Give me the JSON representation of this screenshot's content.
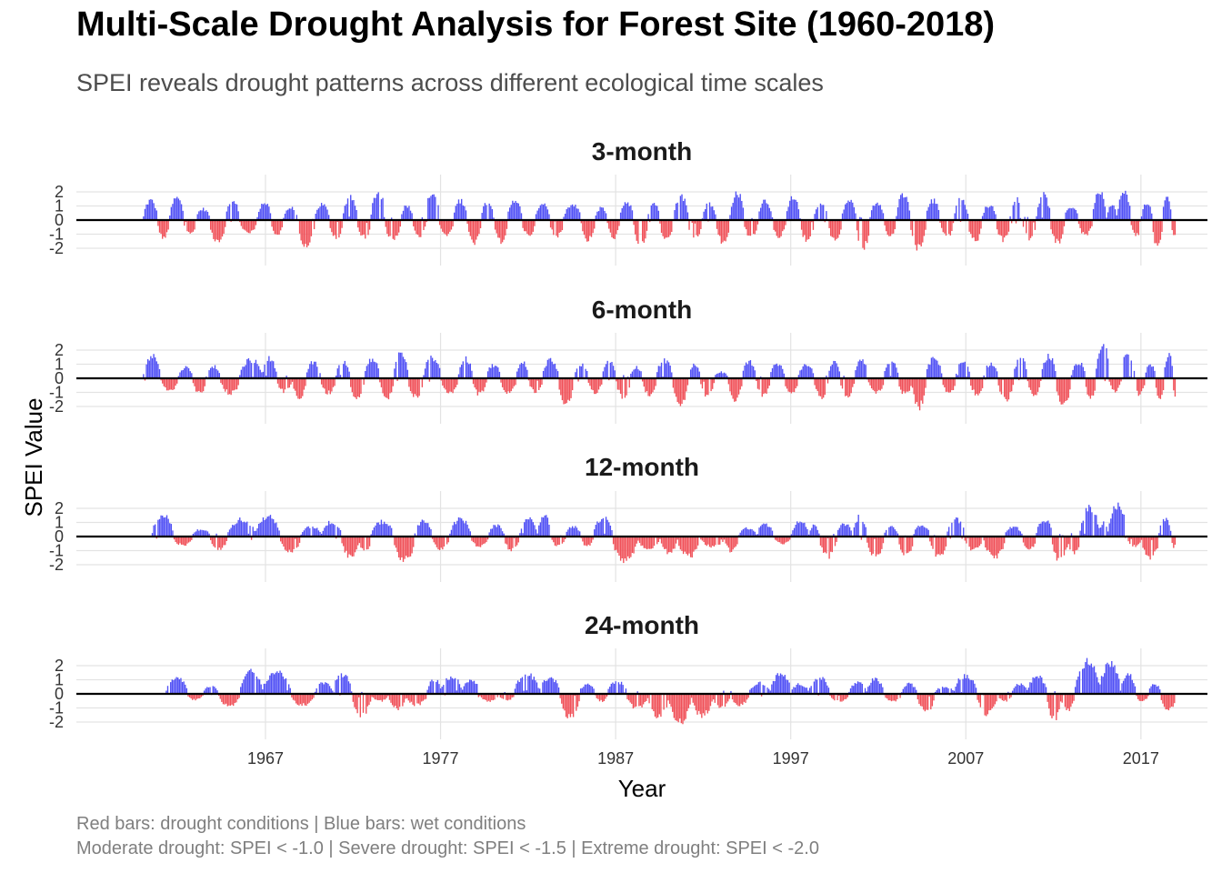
{
  "title": "Multi-Scale Drought Analysis for Forest Site (1960-2018)",
  "subtitle": "SPEI reveals drought patterns across different ecological time scales",
  "caption_line1": "Red bars: drought conditions | Blue bars: wet conditions",
  "caption_line2": "Moderate drought: SPEI < -1.0 | Severe drought: SPEI < -1.5 | Extreme drought: SPEI < -2.0",
  "colors": {
    "wet": "#5050f5",
    "dry": "#f05058",
    "grid": "#e3e3e3",
    "zero_line": "#000000"
  },
  "chart_data": {
    "type": "bar",
    "xlabel": "Year",
    "ylabel": "SPEI Value",
    "x_ticks": [
      1967,
      1977,
      1987,
      1997,
      2007,
      2017
    ],
    "y_ticks": [
      -2,
      -1,
      0,
      1,
      2
    ],
    "x_range": [
      1956.2,
      2020.8
    ],
    "ylim": [
      -3.3,
      3.3
    ],
    "grid": true,
    "panels": [
      {
        "name": "3-month",
        "start": 1960.0,
        "end": 2019.0,
        "episodes": [
          [
            1960.0,
            1.6
          ],
          [
            1960.8,
            -1.4
          ],
          [
            1961.5,
            1.8
          ],
          [
            1962.3,
            -1.2
          ],
          [
            1963.0,
            0.9
          ],
          [
            1963.8,
            -1.9
          ],
          [
            1964.7,
            1.5
          ],
          [
            1965.5,
            -1.0
          ],
          [
            1966.5,
            1.4
          ],
          [
            1967.3,
            -1.2
          ],
          [
            1968.0,
            1.0
          ],
          [
            1968.8,
            -2.0
          ],
          [
            1969.8,
            1.3
          ],
          [
            1970.6,
            -1.5
          ],
          [
            1971.4,
            1.9
          ],
          [
            1972.2,
            -1.4
          ],
          [
            1973.0,
            2.3
          ],
          [
            1973.8,
            -1.6
          ],
          [
            1974.7,
            1.2
          ],
          [
            1975.4,
            -1.5
          ],
          [
            1976.1,
            2.2
          ],
          [
            1976.9,
            -1.2
          ],
          [
            1977.7,
            1.6
          ],
          [
            1978.5,
            -1.8
          ],
          [
            1979.3,
            1.5
          ],
          [
            1980.0,
            -1.7
          ],
          [
            1980.8,
            1.7
          ],
          [
            1981.6,
            -1.2
          ],
          [
            1982.4,
            1.4
          ],
          [
            1983.2,
            -1.3
          ],
          [
            1984.0,
            1.2
          ],
          [
            1985.0,
            -1.6
          ],
          [
            1985.8,
            1.0
          ],
          [
            1986.5,
            -1.4
          ],
          [
            1987.2,
            1.5
          ],
          [
            1988.0,
            -2.0
          ],
          [
            1988.8,
            1.4
          ],
          [
            1989.5,
            -1.7
          ],
          [
            1990.3,
            2.0
          ],
          [
            1991.1,
            -1.5
          ],
          [
            1991.9,
            1.3
          ],
          [
            1992.7,
            -1.8
          ],
          [
            1993.5,
            2.2
          ],
          [
            1994.3,
            -1.4
          ],
          [
            1995.1,
            1.6
          ],
          [
            1995.9,
            -1.3
          ],
          [
            1996.7,
            1.8
          ],
          [
            1997.5,
            -1.6
          ],
          [
            1998.3,
            1.3
          ],
          [
            1999.1,
            -1.6
          ],
          [
            1999.9,
            1.6
          ],
          [
            2000.7,
            -2.2
          ],
          [
            2001.5,
            1.5
          ],
          [
            2002.3,
            -1.3
          ],
          [
            2003.0,
            2.0
          ],
          [
            2003.8,
            -2.3
          ],
          [
            2004.7,
            1.6
          ],
          [
            2005.5,
            -1.3
          ],
          [
            2006.3,
            1.7
          ],
          [
            2007.1,
            -1.7
          ],
          [
            2007.9,
            1.2
          ],
          [
            2008.7,
            -1.6
          ],
          [
            2009.5,
            1.8
          ],
          [
            2010.2,
            -1.5
          ],
          [
            2011.0,
            2.0
          ],
          [
            2011.8,
            -1.8
          ],
          [
            2012.6,
            1.1
          ],
          [
            2013.4,
            -1.2
          ],
          [
            2014.2,
            2.4
          ],
          [
            2015.0,
            1.2
          ],
          [
            2015.6,
            2.2
          ],
          [
            2016.4,
            -1.3
          ],
          [
            2017.0,
            1.5
          ],
          [
            2017.6,
            -2.0
          ],
          [
            2018.2,
            1.9
          ],
          [
            2018.7,
            -1.3
          ]
        ]
      },
      {
        "name": "6-month",
        "start": 1960.0,
        "end": 2019.0,
        "episodes": [
          [
            1960.0,
            1.8
          ],
          [
            1961.0,
            -1.0
          ],
          [
            1962.0,
            0.9
          ],
          [
            1962.8,
            -1.2
          ],
          [
            1963.6,
            1.0
          ],
          [
            1964.4,
            -1.2
          ],
          [
            1965.5,
            1.5
          ],
          [
            1966.8,
            1.6
          ],
          [
            1967.6,
            -1.1
          ],
          [
            1968.5,
            -1.5
          ],
          [
            1969.3,
            1.3
          ],
          [
            1970.1,
            -1.2
          ],
          [
            1971.0,
            1.4
          ],
          [
            1971.8,
            -1.7
          ],
          [
            1972.6,
            1.5
          ],
          [
            1973.5,
            -1.6
          ],
          [
            1974.3,
            2.1
          ],
          [
            1975.1,
            -1.5
          ],
          [
            1976.0,
            1.7
          ],
          [
            1977.0,
            -1.2
          ],
          [
            1978.0,
            1.6
          ],
          [
            1978.8,
            -1.3
          ],
          [
            1979.6,
            1.1
          ],
          [
            1980.4,
            -1.2
          ],
          [
            1981.3,
            1.3
          ],
          [
            1982.0,
            -1.1
          ],
          [
            1982.8,
            1.5
          ],
          [
            1983.7,
            -2.0
          ],
          [
            1984.6,
            1.1
          ],
          [
            1985.4,
            -1.2
          ],
          [
            1986.2,
            1.3
          ],
          [
            1987.0,
            -1.5
          ],
          [
            1987.8,
            0.9
          ],
          [
            1988.5,
            -1.3
          ],
          [
            1989.3,
            1.5
          ],
          [
            1990.2,
            -2.1
          ],
          [
            1991.1,
            1.1
          ],
          [
            1991.8,
            -1.5
          ],
          [
            1992.6,
            0.5
          ],
          [
            1993.4,
            -1.7
          ],
          [
            1994.2,
            1.4
          ],
          [
            1995.0,
            -1.4
          ],
          [
            1995.8,
            1.2
          ],
          [
            1996.6,
            -1.3
          ],
          [
            1997.4,
            1.1
          ],
          [
            1998.3,
            -1.5
          ],
          [
            1999.1,
            1.3
          ],
          [
            1999.8,
            -1.4
          ],
          [
            2000.6,
            1.4
          ],
          [
            2001.4,
            -1.2
          ],
          [
            2002.3,
            1.4
          ],
          [
            2003.1,
            -1.3
          ],
          [
            2003.9,
            -2.3
          ],
          [
            2004.7,
            1.6
          ],
          [
            2005.6,
            -1.2
          ],
          [
            2006.4,
            1.3
          ],
          [
            2007.2,
            -1.3
          ],
          [
            2008.0,
            1.2
          ],
          [
            2008.8,
            -1.7
          ],
          [
            2009.7,
            1.6
          ],
          [
            2010.5,
            -1.3
          ],
          [
            2011.3,
            1.8
          ],
          [
            2012.1,
            -2.0
          ],
          [
            2013.0,
            1.3
          ],
          [
            2013.8,
            -1.6
          ],
          [
            2014.4,
            2.6
          ],
          [
            2015.2,
            -1.2
          ],
          [
            2015.8,
            2.0
          ],
          [
            2016.6,
            -1.3
          ],
          [
            2017.2,
            1.1
          ],
          [
            2017.8,
            -1.8
          ],
          [
            2018.3,
            2.0
          ],
          [
            2018.8,
            -1.5
          ]
        ]
      },
      {
        "name": "12-month",
        "start": 1960.5,
        "end": 2019.0,
        "episodes": [
          [
            1960.5,
            1.8
          ],
          [
            1961.7,
            -0.7
          ],
          [
            1962.8,
            0.6
          ],
          [
            1963.8,
            -1.0
          ],
          [
            1964.8,
            1.4
          ],
          [
            1966.4,
            1.6
          ],
          [
            1967.8,
            -1.2
          ],
          [
            1969.0,
            0.8
          ],
          [
            1970.2,
            1.2
          ],
          [
            1971.3,
            -1.6
          ],
          [
            1972.3,
            -1.2
          ],
          [
            1973.0,
            1.2
          ],
          [
            1974.3,
            -1.9
          ],
          [
            1975.5,
            1.3
          ],
          [
            1976.5,
            -1.0
          ],
          [
            1977.5,
            1.4
          ],
          [
            1978.7,
            -0.8
          ],
          [
            1979.7,
            0.9
          ],
          [
            1980.6,
            -1.1
          ],
          [
            1981.5,
            1.4
          ],
          [
            1982.5,
            1.6
          ],
          [
            1983.3,
            -0.8
          ],
          [
            1984.1,
            0.8
          ],
          [
            1985.0,
            -0.8
          ],
          [
            1985.7,
            1.5
          ],
          [
            1986.8,
            -2.0
          ],
          [
            1988.2,
            -1.0
          ],
          [
            1989.5,
            -1.3
          ],
          [
            1990.5,
            -1.6
          ],
          [
            1991.8,
            -0.8
          ],
          [
            1993.2,
            -1.2
          ],
          [
            1994.0,
            0.7
          ],
          [
            1995.0,
            1.0
          ],
          [
            1996.0,
            -0.6
          ],
          [
            1997.0,
            1.2
          ],
          [
            1998.0,
            0.9
          ],
          [
            1998.6,
            -1.6
          ],
          [
            1999.6,
            1.0
          ],
          [
            2000.5,
            1.6
          ],
          [
            2001.3,
            -1.6
          ],
          [
            2002.3,
            0.8
          ],
          [
            2003.1,
            -1.5
          ],
          [
            2004.0,
            1.0
          ],
          [
            2004.9,
            -1.6
          ],
          [
            2005.9,
            1.4
          ],
          [
            2006.9,
            -1.1
          ],
          [
            2008.0,
            -1.7
          ],
          [
            2009.2,
            0.8
          ],
          [
            2010.2,
            -1.0
          ],
          [
            2011.0,
            1.4
          ],
          [
            2011.9,
            -2.0
          ],
          [
            2012.8,
            -1.4
          ],
          [
            2013.5,
            2.3
          ],
          [
            2014.6,
            1.2
          ],
          [
            2015.1,
            2.5
          ],
          [
            2016.2,
            -0.8
          ],
          [
            2017.0,
            -1.7
          ],
          [
            2018.0,
            1.4
          ],
          [
            2018.7,
            -0.9
          ]
        ]
      },
      {
        "name": "24-month",
        "start": 1961.3,
        "end": 2019.0,
        "episodes": [
          [
            1961.3,
            1.4
          ],
          [
            1962.5,
            -0.5
          ],
          [
            1963.4,
            0.6
          ],
          [
            1964.3,
            -1.0
          ],
          [
            1965.5,
            1.8
          ],
          [
            1966.8,
            1.8
          ],
          [
            1968.4,
            -0.9
          ],
          [
            1969.8,
            0.9
          ],
          [
            1970.8,
            1.6
          ],
          [
            1971.9,
            -1.7
          ],
          [
            1973.0,
            -0.6
          ],
          [
            1974.0,
            -1.2
          ],
          [
            1975.0,
            -0.9
          ],
          [
            1976.2,
            1.2
          ],
          [
            1977.0,
            1.4
          ],
          [
            1978.2,
            1.2
          ],
          [
            1979.2,
            -0.6
          ],
          [
            1980.3,
            -0.5
          ],
          [
            1981.2,
            1.6
          ],
          [
            1982.6,
            1.3
          ],
          [
            1983.8,
            -2.0
          ],
          [
            1984.9,
            0.8
          ],
          [
            1985.8,
            -0.6
          ],
          [
            1986.5,
            1.0
          ],
          [
            1987.6,
            -1.2
          ],
          [
            1988.8,
            -1.8
          ],
          [
            1990.0,
            -2.3
          ],
          [
            1991.3,
            -1.8
          ],
          [
            1992.5,
            -1.2
          ],
          [
            1993.5,
            -0.9
          ],
          [
            1994.6,
            0.9
          ],
          [
            1995.8,
            1.6
          ],
          [
            1997.0,
            0.8
          ],
          [
            1998.0,
            1.3
          ],
          [
            1999.2,
            -0.6
          ],
          [
            2000.3,
            0.9
          ],
          [
            2001.3,
            1.2
          ],
          [
            2002.3,
            -0.6
          ],
          [
            2003.3,
            0.8
          ],
          [
            2004.2,
            -1.4
          ],
          [
            2005.2,
            0.6
          ],
          [
            2006.3,
            1.5
          ],
          [
            2007.6,
            -1.6
          ],
          [
            2008.8,
            -0.6
          ],
          [
            2009.6,
            0.8
          ],
          [
            2010.5,
            1.4
          ],
          [
            2011.6,
            -2.1
          ],
          [
            2012.4,
            -1.3
          ],
          [
            2013.2,
            2.6
          ],
          [
            2014.6,
            2.4
          ],
          [
            2015.8,
            1.5
          ],
          [
            2016.7,
            -0.6
          ],
          [
            2017.4,
            0.8
          ],
          [
            2018.1,
            -1.3
          ]
        ]
      }
    ]
  }
}
